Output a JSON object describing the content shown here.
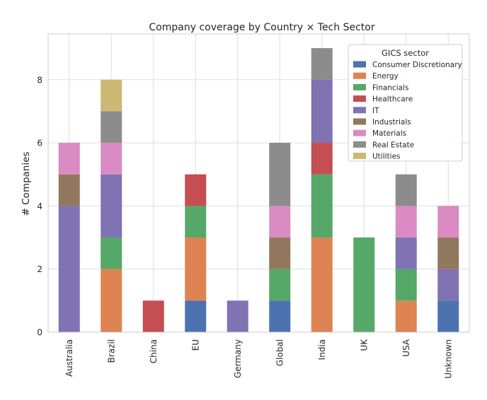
{
  "chart_data": {
    "type": "bar",
    "stacked": true,
    "title": "Company coverage by Country × Tech Sector",
    "xlabel": "",
    "ylabel": "# Companies",
    "ylim": [
      0,
      9.45
    ],
    "yticks": [
      0,
      2,
      4,
      6,
      8
    ],
    "grid": true,
    "legend_title": "GICS sector",
    "legend_position": "top-right",
    "categories": [
      "Australia",
      "Brazil",
      "China",
      "EU",
      "Germany",
      "Global",
      "India",
      "UK",
      "USA",
      "Unknown"
    ],
    "series": [
      {
        "name": "Consumer Discretionary",
        "color": "#4c72b0",
        "values": [
          0,
          0,
          0,
          1,
          0,
          1,
          0,
          0,
          0,
          1
        ]
      },
      {
        "name": "Energy",
        "color": "#dd8452",
        "values": [
          0,
          2,
          0,
          2,
          0,
          0,
          3,
          0,
          1,
          0
        ]
      },
      {
        "name": "Financials",
        "color": "#55a868",
        "values": [
          0,
          1,
          0,
          1,
          0,
          1,
          2,
          3,
          1,
          0
        ]
      },
      {
        "name": "Healthcare",
        "color": "#c44e52",
        "values": [
          0,
          0,
          1,
          1,
          0,
          0,
          1,
          0,
          0,
          0
        ]
      },
      {
        "name": "IT",
        "color": "#8172b3",
        "values": [
          4,
          2,
          0,
          0,
          1,
          0,
          2,
          0,
          1,
          1
        ]
      },
      {
        "name": "Industrials",
        "color": "#937860",
        "values": [
          1,
          0,
          0,
          0,
          0,
          1,
          0,
          0,
          0,
          1
        ]
      },
      {
        "name": "Materials",
        "color": "#da8bc3",
        "values": [
          1,
          1,
          0,
          0,
          0,
          1,
          0,
          0,
          1,
          1
        ]
      },
      {
        "name": "Real Estate",
        "color": "#8c8c8c",
        "values": [
          0,
          1,
          0,
          0,
          0,
          2,
          1,
          0,
          1,
          0
        ]
      },
      {
        "name": "Utilities",
        "color": "#ccb974",
        "values": [
          0,
          1,
          0,
          0,
          0,
          0,
          0,
          0,
          0,
          0
        ]
      }
    ]
  }
}
